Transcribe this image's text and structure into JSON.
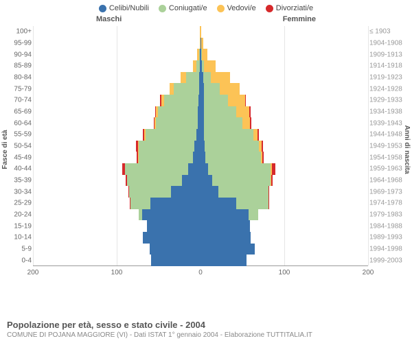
{
  "legend": {
    "items": [
      {
        "label": "Celibi/Nubili",
        "color": "#3a72ad"
      },
      {
        "label": "Coniugati/e",
        "color": "#abd19a"
      },
      {
        "label": "Vedovi/e",
        "color": "#fcc356"
      },
      {
        "label": "Divorziati/e",
        "color": "#d6292b"
      }
    ]
  },
  "headers": {
    "male": "Maschi",
    "female": "Femmine"
  },
  "axis": {
    "left_title": "Fasce di età",
    "right_title": "Anni di nascita",
    "x_ticks": [
      200,
      100,
      0,
      100,
      200
    ],
    "x_max": 200
  },
  "colors": {
    "c": "#3a72ad",
    "m": "#abd19a",
    "w": "#fcc356",
    "d": "#d6292b"
  },
  "bands": [
    {
      "age": "100+",
      "year": "≤ 1903",
      "M": {
        "c": 0,
        "m": 0,
        "w": 1,
        "d": 0
      },
      "F": {
        "c": 0,
        "m": 0,
        "w": 1,
        "d": 0
      }
    },
    {
      "age": "95-99",
      "year": "1904-1908",
      "M": {
        "c": 0,
        "m": 0,
        "w": 2,
        "d": 0
      },
      "F": {
        "c": 1,
        "m": 0,
        "w": 5,
        "d": 0
      }
    },
    {
      "age": "90-94",
      "year": "1909-1913",
      "M": {
        "c": 2,
        "m": 2,
        "w": 4,
        "d": 0
      },
      "F": {
        "c": 2,
        "m": 1,
        "w": 14,
        "d": 0
      }
    },
    {
      "age": "85-89",
      "year": "1914-1918",
      "M": {
        "c": 2,
        "m": 8,
        "w": 8,
        "d": 0
      },
      "F": {
        "c": 4,
        "m": 4,
        "w": 28,
        "d": 0
      }
    },
    {
      "age": "80-84",
      "year": "1919-1923",
      "M": {
        "c": 3,
        "m": 32,
        "w": 12,
        "d": 0
      },
      "F": {
        "c": 6,
        "m": 18,
        "w": 46,
        "d": 0
      }
    },
    {
      "age": "75-79",
      "year": "1924-1928",
      "M": {
        "c": 4,
        "m": 60,
        "w": 10,
        "d": 0
      },
      "F": {
        "c": 8,
        "m": 38,
        "w": 48,
        "d": 0
      }
    },
    {
      "age": "70-74",
      "year": "1929-1933",
      "M": {
        "c": 5,
        "m": 82,
        "w": 7,
        "d": 2
      },
      "F": {
        "c": 8,
        "m": 58,
        "w": 40,
        "d": 2
      }
    },
    {
      "age": "65-69",
      "year": "1934-1938",
      "M": {
        "c": 6,
        "m": 96,
        "w": 5,
        "d": 2
      },
      "F": {
        "c": 8,
        "m": 78,
        "w": 30,
        "d": 3
      }
    },
    {
      "age": "60-64",
      "year": "1939-1943",
      "M": {
        "c": 7,
        "m": 100,
        "w": 3,
        "d": 2
      },
      "F": {
        "c": 8,
        "m": 92,
        "w": 18,
        "d": 3
      }
    },
    {
      "age": "55-59",
      "year": "1944-1948",
      "M": {
        "c": 10,
        "m": 122,
        "w": 2,
        "d": 4
      },
      "F": {
        "c": 8,
        "m": 118,
        "w": 10,
        "d": 4
      }
    },
    {
      "age": "50-54",
      "year": "1949-1953",
      "M": {
        "c": 14,
        "m": 134,
        "w": 2,
        "d": 4
      },
      "F": {
        "c": 10,
        "m": 130,
        "w": 6,
        "d": 4
      }
    },
    {
      "age": "45-49",
      "year": "1954-1958",
      "M": {
        "c": 18,
        "m": 130,
        "w": 1,
        "d": 3
      },
      "F": {
        "c": 12,
        "m": 132,
        "w": 4,
        "d": 3
      }
    },
    {
      "age": "40-44",
      "year": "1959-1963",
      "M": {
        "c": 30,
        "m": 150,
        "w": 1,
        "d": 6
      },
      "F": {
        "c": 18,
        "m": 150,
        "w": 3,
        "d": 8
      }
    },
    {
      "age": "35-39",
      "year": "1964-1968",
      "M": {
        "c": 45,
        "m": 130,
        "w": 0,
        "d": 3
      },
      "F": {
        "c": 28,
        "m": 140,
        "w": 1,
        "d": 3
      }
    },
    {
      "age": "30-34",
      "year": "1969-1973",
      "M": {
        "c": 70,
        "m": 100,
        "w": 0,
        "d": 2
      },
      "F": {
        "c": 42,
        "m": 120,
        "w": 0,
        "d": 2
      }
    },
    {
      "age": "25-29",
      "year": "1974-1978",
      "M": {
        "c": 120,
        "m": 48,
        "w": 0,
        "d": 1
      },
      "F": {
        "c": 85,
        "m": 78,
        "w": 0,
        "d": 1
      }
    },
    {
      "age": "20-24",
      "year": "1979-1983",
      "M": {
        "c": 140,
        "m": 8,
        "w": 0,
        "d": 0
      },
      "F": {
        "c": 115,
        "m": 22,
        "w": 0,
        "d": 0
      }
    },
    {
      "age": "15-19",
      "year": "1984-1988",
      "M": {
        "c": 128,
        "m": 0,
        "w": 0,
        "d": 0
      },
      "F": {
        "c": 118,
        "m": 0,
        "w": 0,
        "d": 0
      }
    },
    {
      "age": "10-14",
      "year": "1989-1993",
      "M": {
        "c": 138,
        "m": 0,
        "w": 0,
        "d": 0
      },
      "F": {
        "c": 120,
        "m": 0,
        "w": 0,
        "d": 0
      }
    },
    {
      "age": "5-9",
      "year": "1994-1998",
      "M": {
        "c": 122,
        "m": 0,
        "w": 0,
        "d": 0
      },
      "F": {
        "c": 130,
        "m": 0,
        "w": 0,
        "d": 0
      }
    },
    {
      "age": "0-4",
      "year": "1999-2003",
      "M": {
        "c": 118,
        "m": 0,
        "w": 0,
        "d": 0
      },
      "F": {
        "c": 110,
        "m": 0,
        "w": 0,
        "d": 0
      }
    }
  ],
  "footer": {
    "title": "Popolazione per età, sesso e stato civile - 2004",
    "sub": "COMUNE DI POJANA MAGGIORE (VI) - Dati ISTAT 1° gennaio 2004 - Elaborazione TUTTITALIA.IT"
  }
}
